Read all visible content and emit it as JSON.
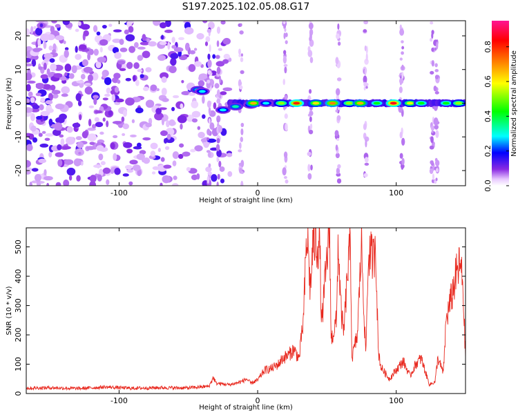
{
  "title": "S197.2025.102.05.08.G17",
  "chart_data": [
    {
      "type": "heatmap",
      "xlabel": "Height of straight line (km)",
      "ylabel": "Frequency (Hz)",
      "xlim": [
        -167,
        150
      ],
      "ylim": [
        -24.5,
        24.5
      ],
      "xticks": [
        -100,
        0,
        100
      ],
      "yticks": [
        -20,
        -10,
        0,
        10,
        20
      ],
      "colorbar": {
        "label": "Normalized spectral amplitude",
        "range": [
          0,
          0.95
        ],
        "ticks": [
          0,
          0.2,
          0.4,
          0.6,
          0.8
        ],
        "tick_labels": [
          "0.0",
          "0.2",
          "0.4",
          "0.6",
          "0.8"
        ],
        "colors": [
          "#ffffff",
          "#e8c8ff",
          "#8a2be2",
          "#0000ff",
          "#00ffff",
          "#00ff00",
          "#ffff00",
          "#ff8000",
          "#ff0000",
          "#ff1493"
        ]
      },
      "signal_band": {
        "frequency": 0,
        "x_start": -20,
        "x_end": 150
      },
      "signal_blobs": [
        {
          "x": -43,
          "y": 4,
          "amp": 0.35
        },
        {
          "x": -40,
          "y": 3.5,
          "amp": 0.3
        },
        {
          "x": -25,
          "y": -2,
          "amp": 0.3
        },
        {
          "x": -16,
          "y": -1,
          "amp": 0.35
        },
        {
          "x": -5,
          "y": -0.5,
          "amp": 0.3
        },
        {
          "x": -3,
          "y": 0,
          "amp": 0.7
        },
        {
          "x": 6,
          "y": 0,
          "amp": 0.3
        },
        {
          "x": 17,
          "y": 0,
          "amp": 0.55
        },
        {
          "x": 28,
          "y": 0,
          "amp": 0.85
        },
        {
          "x": 42,
          "y": 0,
          "amp": 0.65
        },
        {
          "x": 54,
          "y": 0,
          "amp": 0.75
        },
        {
          "x": 66,
          "y": 0,
          "amp": 0.55
        },
        {
          "x": 74,
          "y": 0,
          "amp": 0.7
        },
        {
          "x": 86,
          "y": 0,
          "amp": 0.45
        },
        {
          "x": 98,
          "y": 0,
          "amp": 0.9
        },
        {
          "x": 110,
          "y": 0,
          "amp": 0.6
        },
        {
          "x": 118,
          "y": 0,
          "amp": 0.45
        },
        {
          "x": 136,
          "y": 0,
          "amp": 0.45
        },
        {
          "x": 145,
          "y": 0,
          "amp": 0.55
        }
      ],
      "vertical_streaks_x": [
        -35,
        -28,
        -12,
        20,
        38,
        58,
        78,
        104,
        126,
        129
      ]
    },
    {
      "type": "line",
      "xlabel": "Height of straight line (km)",
      "ylabel": "SNR (10 * v/v)",
      "xlim": [
        -167,
        150
      ],
      "ylim": [
        0,
        565
      ],
      "xticks": [
        -100,
        0,
        100
      ],
      "yticks": [
        0,
        100,
        200,
        300,
        400,
        500
      ],
      "line_color": "#e8281e",
      "series": [
        {
          "x": [
            -167,
            -150,
            -130,
            -110,
            -90,
            -70,
            -50,
            -35,
            -32,
            -30,
            -20,
            -12,
            -8,
            -5,
            0,
            5,
            10,
            15,
            18,
            22,
            26,
            30,
            32,
            33,
            35,
            36,
            38,
            40,
            45,
            46,
            50,
            52,
            53,
            57,
            58,
            60,
            62,
            65,
            67,
            68,
            72,
            74,
            75,
            78,
            80,
            84,
            85,
            87,
            89,
            92,
            95,
            100,
            105,
            110,
            114,
            118,
            122,
            124,
            128,
            130,
            134,
            136,
            140,
            143,
            146,
            148,
            150
          ],
          "y": [
            18,
            20,
            17,
            22,
            18,
            20,
            19,
            25,
            55,
            35,
            30,
            40,
            50,
            35,
            45,
            80,
            85,
            100,
            120,
            130,
            150,
            120,
            210,
            250,
            490,
            530,
            350,
            520,
            500,
            230,
            460,
            560,
            180,
            250,
            520,
            300,
            200,
            420,
            510,
            120,
            200,
            420,
            510,
            130,
            480,
            460,
            550,
            150,
            90,
            70,
            50,
            80,
            110,
            60,
            100,
            120,
            60,
            30,
            40,
            120,
            70,
            250,
            330,
            400,
            440,
            380,
            120
          ]
        }
      ]
    }
  ]
}
